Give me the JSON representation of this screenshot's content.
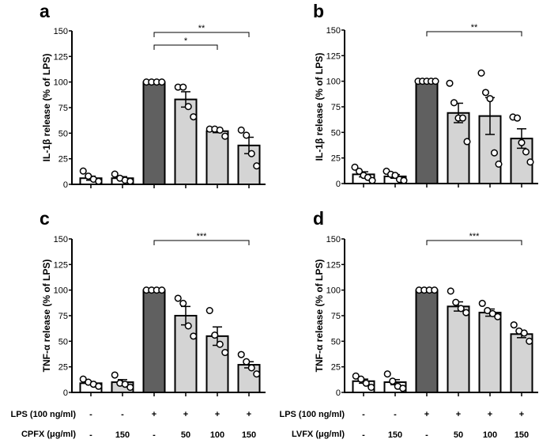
{
  "chart_data": [
    {
      "type": "bar",
      "panel_label": "a",
      "ylabel": "IL-1β release (% of LPS)",
      "ylim": [
        0,
        150
      ],
      "yticks": [
        0,
        25,
        50,
        75,
        100,
        125,
        150
      ],
      "bar_colors": [
        "#ffffff",
        "#ffffff",
        "#606060",
        "#d4d4d4",
        "#d4d4d4",
        "#d4d4d4"
      ],
      "means": [
        6,
        6,
        100,
        83,
        52,
        38
      ],
      "sem": [
        2,
        1.5,
        0,
        7.5,
        1.5,
        8
      ],
      "points": [
        [
          13,
          8,
          5,
          3
        ],
        [
          10,
          6,
          4,
          3
        ],
        [
          100,
          100,
          100,
          100
        ],
        [
          95,
          95,
          76,
          66
        ],
        [
          54,
          54,
          53,
          47
        ],
        [
          53,
          48,
          30,
          18
        ]
      ],
      "significance": [
        {
          "from": 3,
          "to": 6,
          "label": "**"
        },
        {
          "from": 3,
          "to": 5,
          "label": "*"
        }
      ]
    },
    {
      "type": "bar",
      "panel_label": "b",
      "ylabel": "IL-1β release (% of LPS)",
      "ylim": [
        0,
        150
      ],
      "yticks": [
        0,
        25,
        50,
        75,
        100,
        125,
        150
      ],
      "bar_colors": [
        "#ffffff",
        "#ffffff",
        "#606060",
        "#d4d4d4",
        "#d4d4d4",
        "#d4d4d4"
      ],
      "means": [
        9,
        7,
        100,
        69,
        66,
        44
      ],
      "sem": [
        2.5,
        1.8,
        0,
        9.5,
        18,
        9.5
      ],
      "points": [
        [
          16,
          12,
          8,
          6,
          3
        ],
        [
          12,
          9,
          8,
          4,
          3
        ],
        [
          100,
          100,
          100,
          100,
          100
        ],
        [
          98,
          79,
          64,
          64,
          41
        ],
        [
          108,
          89,
          83,
          30,
          19
        ],
        [
          65,
          64,
          40,
          31,
          21
        ]
      ],
      "significance": [
        {
          "from": 3,
          "to": 6,
          "label": "**"
        }
      ]
    },
    {
      "type": "bar",
      "panel_label": "c",
      "ylabel": "TNF-α release (% of LPS)",
      "ylim": [
        0,
        150
      ],
      "yticks": [
        0,
        25,
        50,
        75,
        100,
        125,
        150
      ],
      "bar_colors": [
        "#ffffff",
        "#d4d4d4",
        "#606060",
        "#d4d4d4",
        "#d4d4d4",
        "#d4d4d4"
      ],
      "means": [
        9,
        10,
        100,
        75,
        55,
        27
      ],
      "sem": [
        1.5,
        2.5,
        0,
        9,
        9,
        3
      ],
      "points": [
        [
          13,
          10,
          8,
          6
        ],
        [
          17,
          9,
          8,
          5
        ],
        [
          100,
          100,
          100,
          100
        ],
        [
          92,
          87,
          65,
          55
        ],
        [
          80,
          56,
          47,
          39
        ],
        [
          37,
          30,
          24,
          18
        ]
      ],
      "significance": [
        {
          "from": 3,
          "to": 6,
          "label": "***"
        }
      ]
    },
    {
      "type": "bar",
      "panel_label": "d",
      "ylabel": "TNF-α release (% of LPS)",
      "ylim": [
        0,
        150
      ],
      "yticks": [
        0,
        25,
        50,
        75,
        100,
        125,
        150
      ],
      "bar_colors": [
        "#ffffff",
        "#ffffff",
        "#606060",
        "#d4d4d4",
        "#d4d4d4",
        "#d4d4d4"
      ],
      "means": [
        11,
        10,
        100,
        84,
        78,
        57
      ],
      "sem": [
        2,
        2.5,
        0,
        4.5,
        3.5,
        3.5
      ],
      "points": [
        [
          16,
          13,
          9,
          5
        ],
        [
          18,
          11,
          6,
          4
        ],
        [
          100,
          100,
          100,
          100
        ],
        [
          99,
          88,
          82,
          78
        ],
        [
          87,
          80,
          77,
          74
        ],
        [
          66,
          60,
          58,
          50
        ]
      ],
      "significance": [
        {
          "from": 3,
          "to": 6,
          "label": "***"
        }
      ]
    }
  ],
  "conditions": {
    "left": {
      "lps_label": "LPS (100 ng/ml)",
      "lps_values": [
        "-",
        "-",
        "+",
        "+",
        "+",
        "+"
      ],
      "drug_label": "CPFX (μg/ml)",
      "drug_values": [
        "-",
        "150",
        "-",
        "50",
        "100",
        "150"
      ]
    },
    "right": {
      "lps_label": "LPS (100 ng/ml)",
      "lps_values": [
        "-",
        "-",
        "+",
        "+",
        "+",
        "+"
      ],
      "drug_label": "LVFX (μg/ml)",
      "drug_values": [
        "-",
        "150",
        "-",
        "50",
        "100",
        "150"
      ]
    }
  }
}
